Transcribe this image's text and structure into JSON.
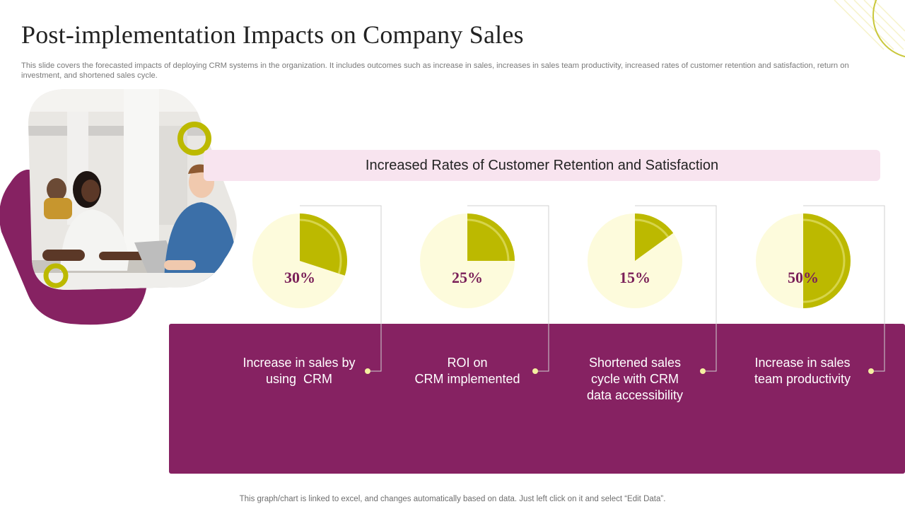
{
  "page": {
    "title": "Post-implementation Impacts on Company Sales",
    "subtitle": "This slide covers the forecasted impacts of deploying CRM systems in the organization. It includes outcomes such as increase in sales, increases in sales team productivity, increased rates of customer retention and satisfaction, return on investment, and shortened sales cycle.",
    "banner": "Increased Rates of Customer Retention and Satisfaction",
    "footer": "This graph/chart is linked to excel, and changes automatically based on data. Just left click on it and select “Edit Data”."
  },
  "colors": {
    "accent": "#bcb900",
    "pie_bg": "#fdfbdc",
    "panel": "#862262",
    "percent_text": "#7a1f58",
    "banner_bg": "#f8e4ef",
    "connector": "#d0d0d0",
    "dot": "#f5f0a0"
  },
  "chart_data": {
    "type": "pie",
    "title": "",
    "series": [
      {
        "name": "Increase in sales by using  CRM",
        "value": 30,
        "label": "30%",
        "desc_lines": [
          "Increase in sales by",
          "using  CRM"
        ]
      },
      {
        "name": "ROI on CRM implemented",
        "value": 25,
        "label": "25%",
        "desc_lines": [
          "ROI on",
          "CRM implemented"
        ]
      },
      {
        "name": "Shortened sales cycle with CRM data accessibility",
        "value": 15,
        "label": "15%",
        "desc_lines": [
          "Shortened sales",
          "cycle with CRM",
          "data accessibility"
        ]
      },
      {
        "name": "Increase in sales team productivity",
        "value": 50,
        "label": "50%",
        "desc_lines": [
          "Increase in sales",
          "team productivity"
        ]
      }
    ]
  },
  "icons": {
    "photo": "people-meeting-photo-icon",
    "ring": "ring-decoration-icon"
  }
}
